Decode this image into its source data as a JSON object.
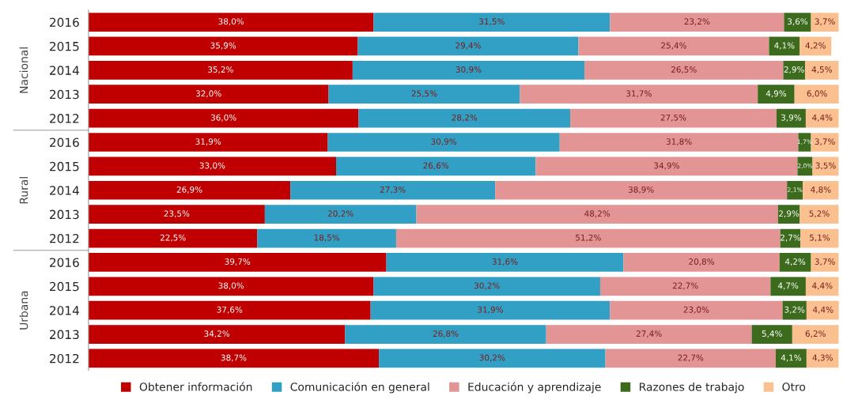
{
  "chart_data": {
    "type": "bar",
    "orientation": "horizontal",
    "stacked": true,
    "categories": [
      "2016",
      "2015",
      "2014",
      "2013",
      "2012",
      "2016",
      "2015",
      "2014",
      "2013",
      "2012",
      "2016",
      "2015",
      "2014",
      "2013",
      "2012"
    ],
    "annotations": [
      "Nacional",
      "Rural",
      "Urbana"
    ],
    "xlim": [
      0,
      100
    ],
    "tick_labels": "y",
    "legend": "bottom",
    "grid": false,
    "series": [
      {
        "name": "Obtener información",
        "color": "#c00000",
        "values": [
          38.0,
          35.9,
          35.2,
          32.0,
          36.0,
          31.9,
          33.0,
          26.9,
          23.5,
          22.5,
          39.7,
          38.0,
          37.6,
          34.2,
          38.7
        ],
        "value_labels": [
          "38,0%",
          "35,9%",
          "35,2%",
          "32,0%",
          "36,0%",
          "31,9%",
          "33,0%",
          "26,9%",
          "23,5%",
          "22,5%",
          "39,7%",
          "38,0%",
          "37,6%",
          "34,2%",
          "38,7%"
        ]
      },
      {
        "name": "Comunicación en general",
        "color": "#31a0c4",
        "values": [
          31.5,
          29.4,
          30.9,
          25.5,
          28.2,
          30.9,
          26.6,
          27.3,
          20.2,
          18.5,
          31.6,
          30.2,
          31.9,
          26.8,
          30.2
        ],
        "value_labels": [
          "31,5%",
          "29,4%",
          "30,9%",
          "25,5%",
          "28,2%",
          "30,9%",
          "26,6%",
          "27,3%",
          "20,2%",
          "18,5%",
          "31,6%",
          "30,2%",
          "31,9%",
          "26,8%",
          "30,2%"
        ]
      },
      {
        "name": "Educación y aprendizaje",
        "color": "#e39494",
        "values": [
          23.2,
          25.4,
          26.5,
          31.7,
          27.5,
          31.8,
          34.9,
          38.9,
          48.2,
          51.2,
          20.8,
          22.7,
          23.0,
          27.4,
          22.7
        ],
        "value_labels": [
          "23,2%",
          "25,4%",
          "26,5%",
          "31,7%",
          "27,5%",
          "31,8%",
          "34,9%",
          "38,9%",
          "48,2%",
          "51,2%",
          "20,8%",
          "22,7%",
          "23,0%",
          "27,4%",
          "22,7%"
        ]
      },
      {
        "name": "Razones de trabajo",
        "color": "#3d6b1e",
        "values": [
          3.6,
          4.1,
          2.9,
          4.9,
          3.9,
          1.7,
          2.0,
          2.1,
          2.9,
          2.7,
          4.2,
          4.7,
          3.2,
          5.4,
          4.1
        ],
        "value_labels": [
          "3,6%",
          "4,1%",
          "2,9%",
          "4,9%",
          "3,9%",
          "1,7%",
          "2,0%",
          "2,1%",
          "2,9%",
          "2,7%",
          "4,2%",
          "4,7%",
          "3,2%",
          "5,4%",
          "4,1%"
        ]
      },
      {
        "name": "Otro",
        "color": "#fac08f",
        "values": [
          3.7,
          4.2,
          4.5,
          6.0,
          4.4,
          3.7,
          3.5,
          4.8,
          5.2,
          5.1,
          3.7,
          4.4,
          4.4,
          6.2,
          4.3
        ],
        "value_labels": [
          "3,7%",
          "4,2%",
          "4,5%",
          "6,0%",
          "4,4%",
          "3,7%",
          "3,5%",
          "4,8%",
          "5,2%",
          "5,1%",
          "3,7%",
          "4,4%",
          "4,4%",
          "6,2%",
          "4,3%"
        ]
      }
    ]
  }
}
